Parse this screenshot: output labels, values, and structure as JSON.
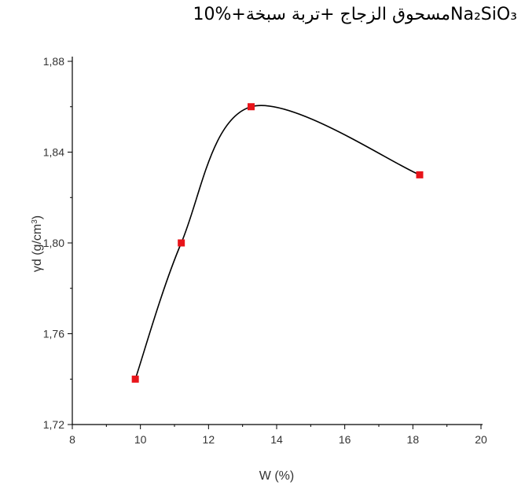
{
  "chart_data": {
    "type": "line",
    "title": "مسحوق الزجاج +تربة سبخة+%10Na₂SiO₃",
    "xlabel": "W (%)",
    "ylabel_main": "γd (g/cm",
    "ylabel_sup": "3",
    "ylabel_close": ")",
    "xlim": [
      8,
      20
    ],
    "ylim": [
      1.72,
      1.88
    ],
    "x_ticks": [
      8,
      10,
      12,
      14,
      16,
      18,
      20
    ],
    "x_tick_labels": [
      "8",
      "10",
      "12",
      "14",
      "16",
      "18",
      "20"
    ],
    "y_ticks": [
      1.72,
      1.76,
      1.8,
      1.84,
      1.88
    ],
    "y_tick_labels": [
      "1,72",
      "1,76",
      "1,80",
      "1,84",
      "1,88"
    ],
    "series": [
      {
        "x": [
          9.85,
          11.2,
          13.25,
          18.2
        ],
        "y": [
          1.74,
          1.8,
          1.86,
          1.83
        ],
        "marker": "square",
        "marker_color": "#e8141a",
        "line_color": "#000000",
        "smooth": true
      }
    ],
    "grid": false
  }
}
